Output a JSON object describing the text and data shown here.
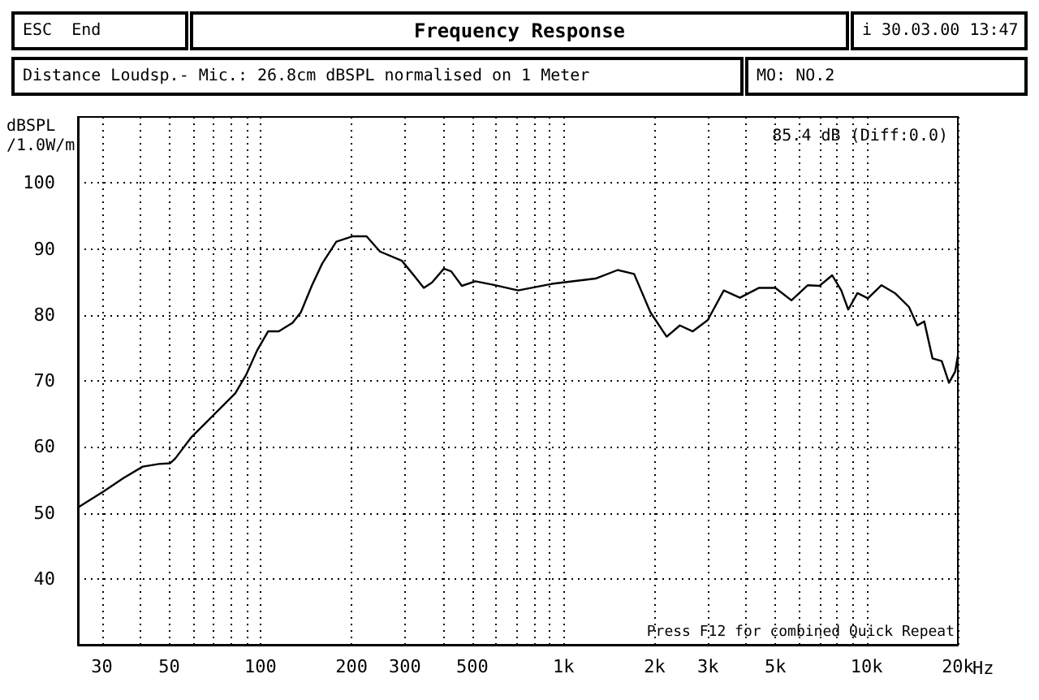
{
  "chart_data": {
    "type": "line",
    "title": "Frequency Response",
    "ylabel": "dBSPL\n/1.0W/m",
    "annotations": [
      "ESC  End",
      "i 30.03.00 13:47",
      "Distance Loudsp.- Mic.: 26.8cm dBSPL normalised on 1 Meter",
      "MO: NO.2",
      "85.4 dB (Diff:0.0)",
      "Press F12 for combined Quick Repeat"
    ],
    "log": "x",
    "grid": true,
    "marker": "none",
    "line_style": "solid",
    "xlim": [
      25,
      20000
    ],
    "ylim": [
      30,
      110
    ],
    "xticks": [
      {
        "value": 30,
        "label": "30"
      },
      {
        "value": 40,
        "label": null
      },
      {
        "value": 50,
        "label": "50"
      },
      {
        "value": 60,
        "label": null
      },
      {
        "value": 70,
        "label": null
      },
      {
        "value": 80,
        "label": null
      },
      {
        "value": 90,
        "label": null
      },
      {
        "value": 100,
        "label": "100"
      },
      {
        "value": 200,
        "label": "200"
      },
      {
        "value": 300,
        "label": "300"
      },
      {
        "value": 400,
        "label": null
      },
      {
        "value": 500,
        "label": "500"
      },
      {
        "value": 600,
        "label": null
      },
      {
        "value": 700,
        "label": null
      },
      {
        "value": 800,
        "label": null
      },
      {
        "value": 900,
        "label": null
      },
      {
        "value": 1000,
        "label": "1k"
      },
      {
        "value": 2000,
        "label": "2k"
      },
      {
        "value": 3000,
        "label": "3k"
      },
      {
        "value": 4000,
        "label": null
      },
      {
        "value": 5000,
        "label": "5k"
      },
      {
        "value": 6000,
        "label": null
      },
      {
        "value": 7000,
        "label": null
      },
      {
        "value": 8000,
        "label": null
      },
      {
        "value": 9000,
        "label": null
      },
      {
        "value": 10000,
        "label": "10k"
      },
      {
        "value": 20000,
        "label": "20k"
      }
    ],
    "xlabel": "Hz",
    "yticks": [
      40,
      50,
      60,
      70,
      80,
      90,
      100
    ],
    "series": [
      {
        "color": "#000000",
        "x": [
          25,
          27.5,
          30.5,
          35.4,
          40.9,
          46.2,
          50.3,
          52.3,
          59.3,
          70,
          82.6,
          89.7,
          97.5,
          106,
          115,
          127.7,
          136,
          148,
          160,
          178,
          201,
          224,
          248,
          293,
          318,
          346,
          368,
          403,
          426,
          462,
          512,
          594,
          708,
          915,
          1275,
          1510,
          1710,
          1935,
          2190,
          2420,
          2670,
          2990,
          3380,
          3820,
          4420,
          5000,
          5650,
          6400,
          6990,
          7700,
          8250,
          8700,
          9330,
          10100,
          11200,
          12400,
          13800,
          14700,
          15500,
          16500,
          17700,
          18700,
          19600,
          20000
        ],
        "values": [
          50.8,
          52.0,
          53.3,
          55.3,
          57.0,
          57.4,
          57.5,
          58.2,
          61.5,
          64.8,
          68.1,
          70.9,
          74.6,
          77.5,
          77.5,
          78.8,
          80.4,
          84.5,
          87.8,
          91.1,
          91.9,
          91.9,
          89.6,
          88.2,
          86.2,
          84.1,
          84.9,
          87.0,
          86.6,
          84.4,
          85.1,
          84.5,
          83.7,
          84.7,
          85.5,
          86.8,
          86.2,
          80.4,
          76.7,
          78.4,
          77.5,
          79.2,
          83.7,
          82.6,
          84.1,
          84.1,
          82.2,
          84.5,
          84.4,
          86.0,
          83.7,
          80.8,
          83.3,
          82.5,
          84.5,
          83.3,
          81.2,
          78.4,
          79.0,
          73.4,
          73.0,
          69.7,
          71.4,
          73.8
        ]
      }
    ]
  }
}
